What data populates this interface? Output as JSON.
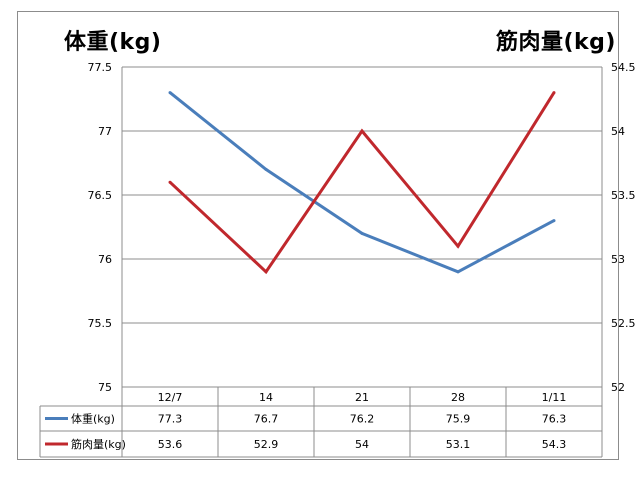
{
  "chart_data": {
    "type": "line",
    "title": "",
    "left_axis_label": "体重(kg)",
    "right_axis_label": "筋肉量(kg)",
    "categories": [
      "12/7",
      "14",
      "21",
      "28",
      "1/11"
    ],
    "left_axis": {
      "min": 75,
      "max": 77.5,
      "ticks": [
        "77.5",
        "77",
        "76.5",
        "76",
        "75.5",
        "75"
      ]
    },
    "right_axis": {
      "min": 52,
      "max": 54.5,
      "ticks": [
        "54.5",
        "54",
        "53.5",
        "53",
        "52.5",
        "52"
      ]
    },
    "grid": true,
    "legend": "data-table",
    "series": [
      {
        "name": "体重(kg)",
        "axis": "left",
        "color": "#4a7ebb",
        "values": [
          77.3,
          76.7,
          76.2,
          75.9,
          76.3
        ],
        "labels": [
          "77.3",
          "76.7",
          "76.2",
          "75.9",
          "76.3"
        ]
      },
      {
        "name": "筋肉量(kg)",
        "axis": "right",
        "color": "#c0282d",
        "values": [
          53.6,
          52.9,
          54,
          53.1,
          54.3
        ],
        "labels": [
          "53.6",
          "52.9",
          "54",
          "53.1",
          "54.3"
        ]
      }
    ]
  }
}
